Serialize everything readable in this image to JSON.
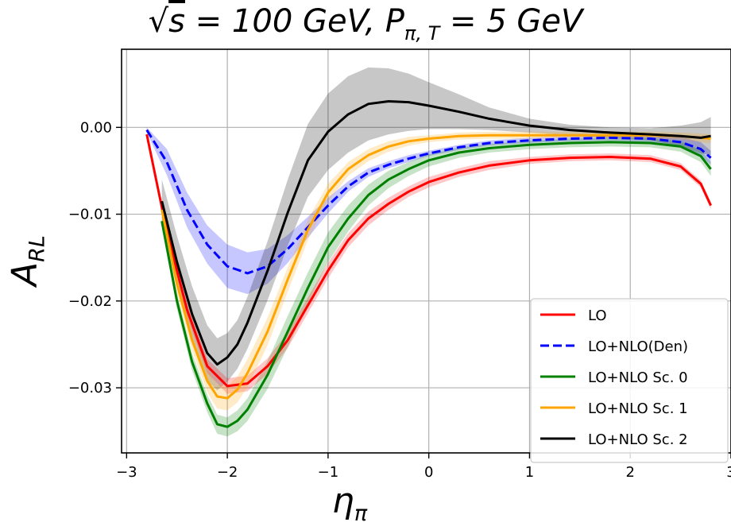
{
  "title": {
    "sqrt_symbol": "√",
    "s_var": "s",
    "part1": " = 100 GeV, ",
    "p_var": "P",
    "p_sub": "π, T",
    "part2": " = 5 GeV"
  },
  "chart_data": {
    "type": "line",
    "xlabel": {
      "main": "η",
      "sub": "π"
    },
    "ylabel": {
      "main": "A",
      "sub": "RL"
    },
    "xlim": [
      -3.05,
      3.0
    ],
    "ylim": [
      -0.0375,
      0.009
    ],
    "xticks": [
      -3,
      -2,
      -1,
      0,
      1,
      2,
      3
    ],
    "xtick_labels": [
      "−3",
      "−2",
      "−1",
      "0",
      "1",
      "2",
      "3"
    ],
    "yticks": [
      0.0,
      -0.01,
      -0.02,
      -0.03
    ],
    "ytick_labels": [
      "0.00",
      "−0.01",
      "−0.02",
      "−0.03"
    ],
    "grid": true,
    "legend_position": "lower-right",
    "series": [
      {
        "name": "LO",
        "color": "#ff0000",
        "dash": "solid",
        "x": [
          -2.8,
          -2.6,
          -2.4,
          -2.2,
          -2.0,
          -1.8,
          -1.6,
          -1.4,
          -1.2,
          -1.0,
          -0.8,
          -0.6,
          -0.4,
          -0.2,
          0.0,
          0.3,
          0.6,
          1.0,
          1.4,
          1.8,
          2.2,
          2.5,
          2.7,
          2.8
        ],
        "y": [
          -0.0008,
          -0.012,
          -0.021,
          -0.0275,
          -0.0298,
          -0.0295,
          -0.0275,
          -0.0245,
          -0.0205,
          -0.0165,
          -0.013,
          -0.0105,
          -0.0088,
          -0.0074,
          -0.0063,
          -0.0052,
          -0.0044,
          -0.0038,
          -0.0035,
          -0.0034,
          -0.0036,
          -0.0045,
          -0.0065,
          -0.009
        ],
        "band": [
          0.0002,
          0.0008,
          0.0008,
          0.0008,
          0.0009,
          0.0009,
          0.0009,
          0.0009,
          0.0009,
          0.0009,
          0.0008,
          0.0008,
          0.0007,
          0.0006,
          0.0006,
          0.0005,
          0.0005,
          0.0004,
          0.0004,
          0.0004,
          0.0004,
          0.0004,
          0.0004,
          0.0004
        ]
      },
      {
        "name": "LO+NLO(Den)",
        "color": "#0000ff",
        "dash": "dashed",
        "x": [
          -2.8,
          -2.6,
          -2.4,
          -2.2,
          -2.0,
          -1.8,
          -1.6,
          -1.4,
          -1.2,
          -1.0,
          -0.8,
          -0.6,
          -0.4,
          -0.2,
          0.0,
          0.3,
          0.6,
          1.0,
          1.4,
          1.8,
          2.2,
          2.5,
          2.7,
          2.8
        ],
        "y": [
          -0.0003,
          -0.004,
          -0.0095,
          -0.0135,
          -0.016,
          -0.0168,
          -0.016,
          -0.014,
          -0.0115,
          -0.009,
          -0.0068,
          -0.0052,
          -0.0043,
          -0.0036,
          -0.003,
          -0.0023,
          -0.0018,
          -0.0015,
          -0.0013,
          -0.0012,
          -0.0013,
          -0.0017,
          -0.0025,
          -0.0035
        ],
        "band": [
          0.0003,
          0.0015,
          0.002,
          0.0022,
          0.0025,
          0.0024,
          0.002,
          0.0016,
          0.0012,
          0.0009,
          0.0006,
          0.0005,
          0.0004,
          0.0004,
          0.0003,
          0.0003,
          0.0003,
          0.0003,
          0.0003,
          0.0003,
          0.0004,
          0.0006,
          0.0008,
          0.0008
        ]
      },
      {
        "name": "LO+NLO Sc. 0",
        "color": "#008000",
        "dash": "solid",
        "x": [
          -2.65,
          -2.5,
          -2.35,
          -2.2,
          -2.1,
          -2.0,
          -1.9,
          -1.8,
          -1.6,
          -1.4,
          -1.2,
          -1.0,
          -0.8,
          -0.6,
          -0.4,
          -0.2,
          0.0,
          0.3,
          0.6,
          1.0,
          1.4,
          1.8,
          2.2,
          2.5,
          2.7,
          2.8
        ],
        "y": [
          -0.0108,
          -0.02,
          -0.027,
          -0.0318,
          -0.0342,
          -0.0345,
          -0.0338,
          -0.0325,
          -0.0285,
          -0.0235,
          -0.0185,
          -0.0138,
          -0.0105,
          -0.0078,
          -0.006,
          -0.0048,
          -0.0038,
          -0.0029,
          -0.0024,
          -0.002,
          -0.0018,
          -0.0017,
          -0.0018,
          -0.0022,
          -0.0033,
          -0.0048
        ],
        "band": [
          0.0006,
          0.0009,
          0.001,
          0.001,
          0.0011,
          0.0011,
          0.0012,
          0.0013,
          0.0016,
          0.0018,
          0.0018,
          0.0017,
          0.0015,
          0.0012,
          0.001,
          0.0008,
          0.0007,
          0.0006,
          0.0005,
          0.0005,
          0.0005,
          0.0005,
          0.0005,
          0.0006,
          0.0007,
          0.0008
        ]
      },
      {
        "name": "LO+NLO Sc. 1",
        "color": "#ffa500",
        "dash": "solid",
        "x": [
          -2.65,
          -2.5,
          -2.35,
          -2.2,
          -2.1,
          -2.0,
          -1.9,
          -1.8,
          -1.6,
          -1.4,
          -1.2,
          -1.0,
          -0.8,
          -0.6,
          -0.4,
          -0.2,
          0.0,
          0.3,
          0.6,
          1.0,
          1.4,
          1.8,
          2.2,
          2.5,
          2.7,
          2.8
        ],
        "y": [
          -0.0095,
          -0.018,
          -0.0245,
          -0.0292,
          -0.031,
          -0.0312,
          -0.0302,
          -0.0283,
          -0.0235,
          -0.0175,
          -0.0118,
          -0.0075,
          -0.0048,
          -0.0032,
          -0.0022,
          -0.0016,
          -0.0013,
          -0.001,
          -0.0009,
          -0.0009,
          -0.0009,
          -0.0009,
          -0.0009,
          -0.001,
          -0.0012,
          -0.0013
        ],
        "band": [
          0.0008,
          0.001,
          0.0012,
          0.0013,
          0.0014,
          0.0014,
          0.0015,
          0.0016,
          0.0016,
          0.0014,
          0.0012,
          0.001,
          0.0008,
          0.0007,
          0.0006,
          0.0005,
          0.0004,
          0.0004,
          0.0004,
          0.0004,
          0.0004,
          0.0004,
          0.0004,
          0.0004,
          0.0005,
          0.0005
        ]
      },
      {
        "name": "LO+NLO Sc. 2",
        "color": "#000000",
        "dash": "solid",
        "x": [
          -2.65,
          -2.5,
          -2.35,
          -2.2,
          -2.1,
          -2.0,
          -1.9,
          -1.8,
          -1.6,
          -1.4,
          -1.2,
          -1.0,
          -0.8,
          -0.6,
          -0.4,
          -0.2,
          0.0,
          0.3,
          0.6,
          1.0,
          1.4,
          1.8,
          2.2,
          2.5,
          2.7,
          2.8
        ],
        "y": [
          -0.0085,
          -0.0155,
          -0.0215,
          -0.026,
          -0.0273,
          -0.0265,
          -0.025,
          -0.0225,
          -0.0165,
          -0.0098,
          -0.0038,
          -0.0005,
          0.0015,
          0.0027,
          0.003,
          0.0029,
          0.0025,
          0.0018,
          0.001,
          0.0002,
          -0.0003,
          -0.0006,
          -0.0008,
          -0.001,
          -0.0012,
          -0.001
        ],
        "band": [
          0.0025,
          0.003,
          0.0032,
          0.0032,
          0.003,
          0.0028,
          0.0028,
          0.003,
          0.0034,
          0.0038,
          0.0042,
          0.0044,
          0.0044,
          0.0042,
          0.0038,
          0.0033,
          0.0027,
          0.002,
          0.0013,
          0.0008,
          0.0006,
          0.0006,
          0.0007,
          0.0012,
          0.0018,
          0.0022
        ]
      }
    ]
  }
}
